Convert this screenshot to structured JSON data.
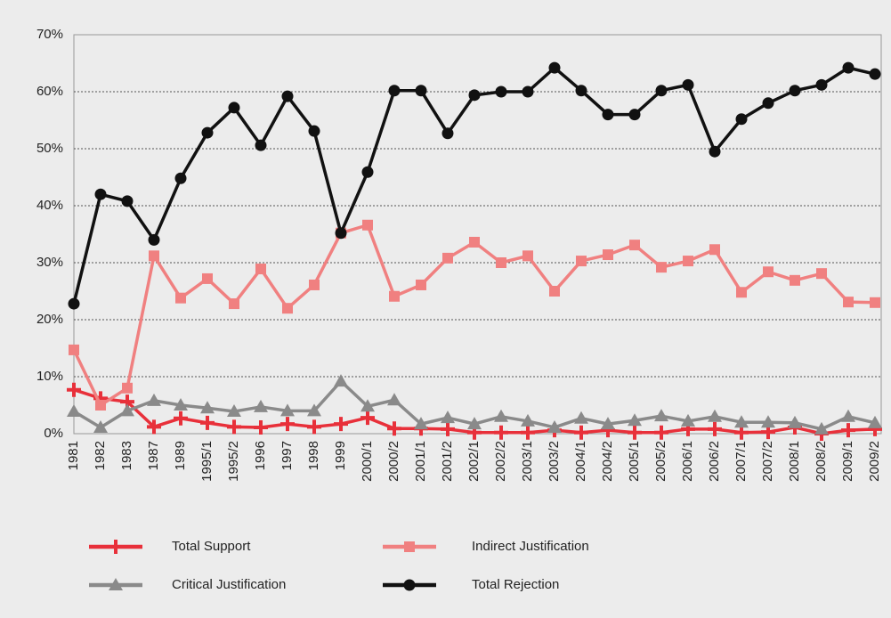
{
  "chart_data": {
    "type": "line",
    "categories": [
      "1981",
      "1982",
      "1983",
      "1987",
      "1989",
      "1995/1",
      "1995/2",
      "1996",
      "1997",
      "1998",
      "1999",
      "2000/1",
      "2000/2",
      "2001/1",
      "2001/2",
      "2002/1",
      "2002/2",
      "2003/1",
      "2003/2",
      "2004/1",
      "2004/2",
      "2005/1",
      "2005/2",
      "2006/1",
      "2006/2",
      "2007/1",
      "2007/2",
      "2008/1",
      "2008/2",
      "2009/1",
      "2009/2"
    ],
    "series": [
      {
        "name": "Total Support",
        "color": "#e8303a",
        "marker": "cross",
        "values": [
          7.7,
          6.2,
          5.6,
          1.2,
          2.7,
          1.9,
          1.2,
          1.1,
          1.7,
          1.2,
          1.7,
          2.8,
          0.9,
          0.9,
          0.8,
          0.2,
          0.2,
          0.2,
          0.6,
          0.2,
          0.6,
          0.2,
          0.2,
          0.8,
          0.8,
          0.2,
          0.3,
          1.1,
          0,
          0.6,
          0.8
        ]
      },
      {
        "name": "Indirect Justification",
        "color": "#f08080",
        "marker": "square",
        "values": [
          14.7,
          5,
          8,
          31.2,
          23.8,
          27.2,
          22.8,
          28.9,
          22,
          26.1,
          35.2,
          36.6,
          24.1,
          26.1,
          30.8,
          33.6,
          30,
          31.2,
          25,
          30.3,
          31.4,
          33.1,
          29.2,
          30.3,
          32.3,
          24.8,
          28.4,
          26.9,
          28.1,
          23.1,
          23
        ]
      },
      {
        "name": "Critical Justification",
        "color": "#8a8a8a",
        "marker": "triangle",
        "values": [
          3.9,
          1.1,
          4,
          5.8,
          5,
          4.5,
          3.9,
          4.7,
          4,
          4,
          9.2,
          4.8,
          5.9,
          1.7,
          2.8,
          1.7,
          3,
          2.2,
          1.1,
          2.7,
          1.7,
          2.3,
          3.1,
          2.2,
          3,
          2,
          2,
          1.9,
          0.8,
          3,
          1.9
        ]
      },
      {
        "name": "Total Rejection",
        "color": "#111111",
        "marker": "circle",
        "values": [
          22.8,
          42,
          40.8,
          34,
          44.8,
          52.8,
          57.2,
          50.6,
          59.2,
          53.1,
          35.2,
          45.9,
          60.2,
          60.2,
          52.7,
          59.4,
          60,
          60,
          64.2,
          60.2,
          56,
          56,
          60.2,
          61.2,
          49.5,
          55.2,
          58,
          60.2,
          61.2,
          64.2,
          63.1
        ]
      }
    ],
    "ylim": [
      0,
      70
    ],
    "yticks": [
      {
        "value": 0,
        "label": "0%"
      },
      {
        "value": 10,
        "label": "10%"
      },
      {
        "value": 20,
        "label": "20%"
      },
      {
        "value": 30,
        "label": "30%"
      },
      {
        "value": 40,
        "label": "40%"
      },
      {
        "value": 50,
        "label": "50%"
      },
      {
        "value": 60,
        "label": "60%"
      },
      {
        "value": 70,
        "label": "70%"
      }
    ],
    "grid": true
  }
}
